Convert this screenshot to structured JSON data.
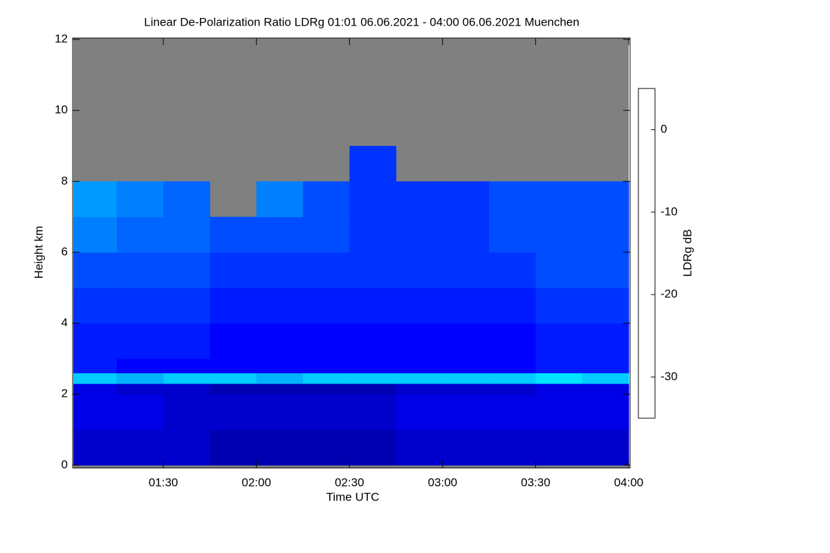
{
  "chart_data": {
    "type": "heatmap",
    "title": "Linear De-Polarization Ratio LDRg   01:01 06.06.2021 - 04:00 06.06.2021 Muenchen",
    "x_label": "Time UTC",
    "y_label": "Height km",
    "colorbar_label": "LDRg dB",
    "xbins": [
      61,
      75,
      90,
      105,
      120,
      135,
      150,
      165,
      180,
      195,
      210,
      225,
      240
    ],
    "ybins": [
      0,
      1,
      2,
      2.3,
      2.6,
      3,
      4,
      5,
      6,
      7,
      8,
      9,
      10,
      12
    ],
    "z": [
      [
        -32,
        -32,
        -32,
        -33,
        -33,
        -33,
        -33,
        -32,
        -32,
        -32,
        -32,
        -32
      ],
      [
        -31,
        -31,
        -32,
        -32,
        -32,
        -32,
        -32,
        -31,
        -31,
        -31,
        -31,
        -31
      ],
      [
        -31,
        -32,
        -32,
        -33,
        -33,
        -33,
        -33,
        -32,
        -32,
        -32,
        -31,
        -31
      ],
      [
        -22,
        -23,
        -22,
        -22,
        -23,
        -22,
        -22,
        -22,
        -22,
        -22,
        -21,
        -22
      ],
      [
        -29,
        -30,
        -30,
        -30,
        -30,
        -30,
        -30,
        -30,
        -30,
        -30,
        -29,
        -29
      ],
      [
        -29,
        -29,
        -29,
        -30,
        -30,
        -30,
        -30,
        -30,
        -30,
        -30,
        -29,
        -29
      ],
      [
        -28,
        -28,
        -28,
        -29,
        -29,
        -29,
        -29,
        -29,
        -29,
        -29,
        -28,
        -28
      ],
      [
        -27,
        -27,
        -27,
        -28,
        -28,
        -28,
        -28,
        -28,
        -28,
        -28,
        -27,
        -27
      ],
      [
        -25,
        -26,
        -26,
        -27,
        -27,
        -27,
        -28,
        -28,
        -28,
        -27,
        -27,
        -27
      ],
      [
        -24,
        -25,
        -26,
        null,
        -25,
        -27,
        -28,
        -28,
        -28,
        -27,
        -27,
        -27
      ],
      [
        null,
        null,
        null,
        null,
        null,
        null,
        -28,
        null,
        null,
        null,
        null,
        null
      ],
      [
        null,
        null,
        null,
        null,
        null,
        null,
        null,
        null,
        null,
        null,
        null,
        null
      ],
      [
        null,
        null,
        null,
        null,
        null,
        null,
        null,
        null,
        null,
        null,
        null,
        null
      ]
    ],
    "xlim": [
      61,
      240
    ],
    "xticks": [
      {
        "value": 90,
        "label": "01:30"
      },
      {
        "value": 120,
        "label": "02:00"
      },
      {
        "value": 150,
        "label": "02:30"
      },
      {
        "value": 180,
        "label": "03:00"
      },
      {
        "value": 210,
        "label": "03:30"
      },
      {
        "value": 240,
        "label": "04:00"
      }
    ],
    "ylim": [
      -0.08,
      12.04
    ],
    "yticks": [
      0,
      2,
      4,
      6,
      8,
      10,
      12
    ],
    "zlim": [
      -35,
      5
    ],
    "zticks": [
      0,
      -10,
      -20,
      -30
    ],
    "colormap": "jet",
    "missing_color": "#808080"
  }
}
